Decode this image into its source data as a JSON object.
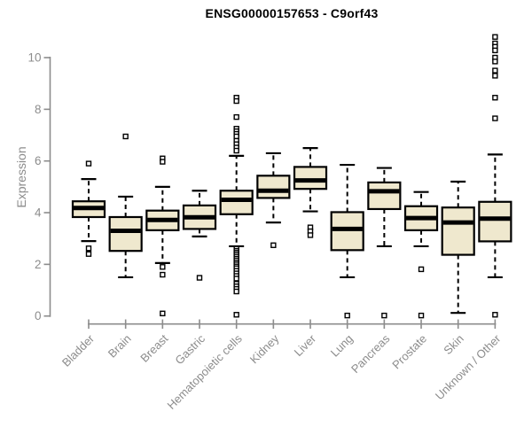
{
  "chart_data": {
    "type": "boxplot",
    "title": "ENSG00000157653 - C9orf43",
    "xlabel": "",
    "ylabel": "Expression",
    "ylim": [
      0,
      10.9
    ],
    "yticks": [
      0,
      2,
      4,
      6,
      8,
      10
    ],
    "grid": false,
    "legend": "none",
    "marker_style": "open-square",
    "categories": [
      "Bladder",
      "Brain",
      "Breast",
      "Gastric",
      "Hematopoietic cells",
      "Kidney",
      "Liver",
      "Lung",
      "Pancreas",
      "Prostate",
      "Skin",
      "Unknown / Other"
    ],
    "series": [
      {
        "category": "Bladder",
        "whisker_low": 2.9,
        "q1": 3.83,
        "median": 4.18,
        "q3": 4.44,
        "whisker_high": 5.3,
        "outliers": [
          5.9,
          2.62,
          2.4
        ]
      },
      {
        "category": "Brain",
        "whisker_low": 1.5,
        "q1": 2.52,
        "median": 3.3,
        "q3": 3.83,
        "whisker_high": 4.62,
        "outliers": [
          6.95
        ]
      },
      {
        "category": "Breast",
        "whisker_low": 2.05,
        "q1": 3.32,
        "median": 3.72,
        "q3": 4.08,
        "whisker_high": 5.0,
        "outliers": [
          6.1,
          5.97,
          1.9,
          1.6,
          0.1
        ]
      },
      {
        "category": "Gastric",
        "whisker_low": 3.08,
        "q1": 3.37,
        "median": 3.82,
        "q3": 4.28,
        "whisker_high": 4.85,
        "outliers": [
          1.48
        ]
      },
      {
        "category": "Hematopoietic cells",
        "whisker_low": 2.7,
        "q1": 3.94,
        "median": 4.5,
        "q3": 4.85,
        "whisker_high": 6.2,
        "outliers": [
          8.45,
          8.32,
          7.7,
          7.25,
          7.15,
          7.05,
          6.95,
          6.78,
          6.65,
          6.52,
          6.4,
          2.6,
          2.52,
          2.45,
          2.38,
          2.3,
          2.22,
          2.15,
          2.07,
          2.0,
          1.92,
          1.85,
          1.75,
          1.65,
          1.55,
          1.45,
          1.25,
          1.15,
          1.05,
          0.95,
          0.05
        ]
      },
      {
        "category": "Kidney",
        "whisker_low": 3.62,
        "q1": 4.57,
        "median": 4.85,
        "q3": 5.43,
        "whisker_high": 6.3,
        "outliers": [
          2.74
        ]
      },
      {
        "category": "Liver",
        "whisker_low": 4.05,
        "q1": 4.92,
        "median": 5.25,
        "q3": 5.77,
        "whisker_high": 6.5,
        "outliers": [
          3.43,
          3.28,
          3.13
        ]
      },
      {
        "category": "Lung",
        "whisker_low": 1.5,
        "q1": 2.55,
        "median": 3.37,
        "q3": 4.02,
        "whisker_high": 5.85,
        "outliers": [
          0.02
        ]
      },
      {
        "category": "Pancreas",
        "whisker_low": 2.7,
        "q1": 4.14,
        "median": 4.83,
        "q3": 5.17,
        "whisker_high": 5.73,
        "outliers": [
          0.02
        ]
      },
      {
        "category": "Prostate",
        "whisker_low": 2.7,
        "q1": 3.32,
        "median": 3.79,
        "q3": 4.25,
        "whisker_high": 4.8,
        "outliers": [
          1.81,
          0.02
        ]
      },
      {
        "category": "Skin",
        "whisker_low": 0.12,
        "q1": 2.37,
        "median": 3.62,
        "q3": 4.2,
        "whisker_high": 5.2,
        "outliers": []
      },
      {
        "category": "Unknown / Other",
        "whisker_low": 1.5,
        "q1": 2.89,
        "median": 3.77,
        "q3": 4.42,
        "whisker_high": 6.25,
        "outliers": [
          10.8,
          10.55,
          10.42,
          10.28,
          10.0,
          9.85,
          9.5,
          9.3,
          8.45,
          7.65,
          0.05
        ]
      }
    ],
    "colors": {
      "box_fill": "#EFE8CE",
      "box_stroke": "#000000",
      "median": "#000000",
      "whisker": "#000000",
      "outlier_stroke": "#000000",
      "axis": "#8c8c8c",
      "tick_label": "#8c8c8c",
      "title": "#000000",
      "background": "#ffffff"
    }
  }
}
